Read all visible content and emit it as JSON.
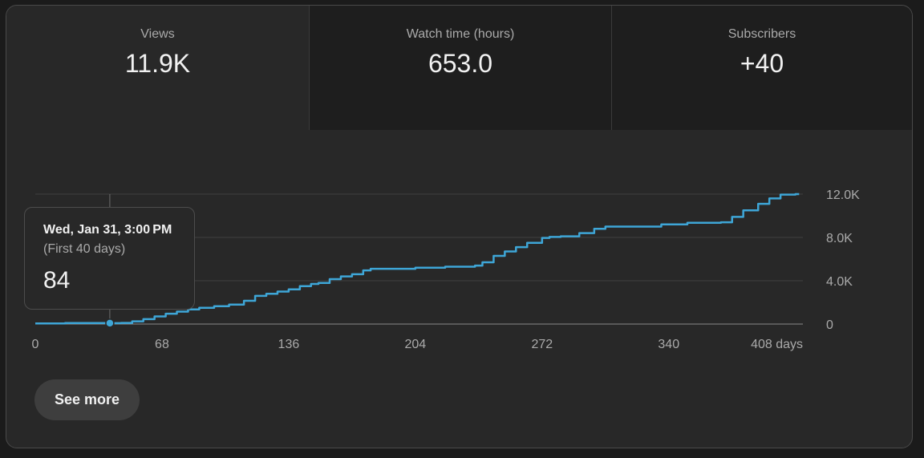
{
  "metrics": [
    {
      "label": "Views",
      "value": "11.9K"
    },
    {
      "label": "Watch time (hours)",
      "value": "653.0"
    },
    {
      "label": "Subscribers",
      "value": "+40"
    }
  ],
  "tooltip": {
    "date": "Wed, Jan 31, 3:00 PM",
    "range": "(First 40 days)",
    "value": "84"
  },
  "see_more_label": "See more",
  "colors": {
    "line": "#3ea6d7",
    "background": "#282828",
    "grid": "#3f3f3f"
  },
  "chart_data": {
    "type": "line",
    "xlabel": "",
    "ylabel": "",
    "xlim": [
      0,
      412
    ],
    "ylim": [
      0,
      12000
    ],
    "x_ticks": [
      0,
      68,
      136,
      204,
      272,
      340,
      408
    ],
    "x_tick_labels": [
      "0",
      "68",
      "136",
      "204",
      "272",
      "340",
      "408 days"
    ],
    "y_ticks": [
      0,
      4000,
      8000,
      12000
    ],
    "y_tick_labels": [
      "0",
      "4.0K",
      "8.0K",
      "12.0K"
    ],
    "grid": true,
    "highlight": {
      "x": 40,
      "y": 84
    },
    "series": [
      {
        "x": [
          0,
          16,
          30,
          40,
          46,
          52,
          58,
          64,
          70,
          76,
          82,
          88,
          96,
          104,
          112,
          118,
          124,
          130,
          136,
          142,
          148,
          152,
          158,
          164,
          170,
          176,
          180,
          190,
          204,
          220,
          236,
          240,
          246,
          252,
          258,
          264,
          272,
          276,
          282,
          292,
          300,
          306,
          320,
          336,
          350,
          368,
          374,
          380,
          388,
          394,
          400,
          408,
          410
        ],
        "y": [
          60,
          90,
          90,
          84,
          100,
          250,
          450,
          700,
          950,
          1150,
          1350,
          1500,
          1650,
          1800,
          2150,
          2600,
          2800,
          3000,
          3200,
          3500,
          3700,
          3800,
          4150,
          4400,
          4600,
          4950,
          5100,
          5100,
          5200,
          5300,
          5400,
          5700,
          6300,
          6700,
          7100,
          7500,
          7950,
          8050,
          8100,
          8400,
          8800,
          9000,
          9000,
          9200,
          9350,
          9400,
          9900,
          10500,
          11100,
          11600,
          11950,
          12000,
          12000
        ]
      }
    ]
  }
}
